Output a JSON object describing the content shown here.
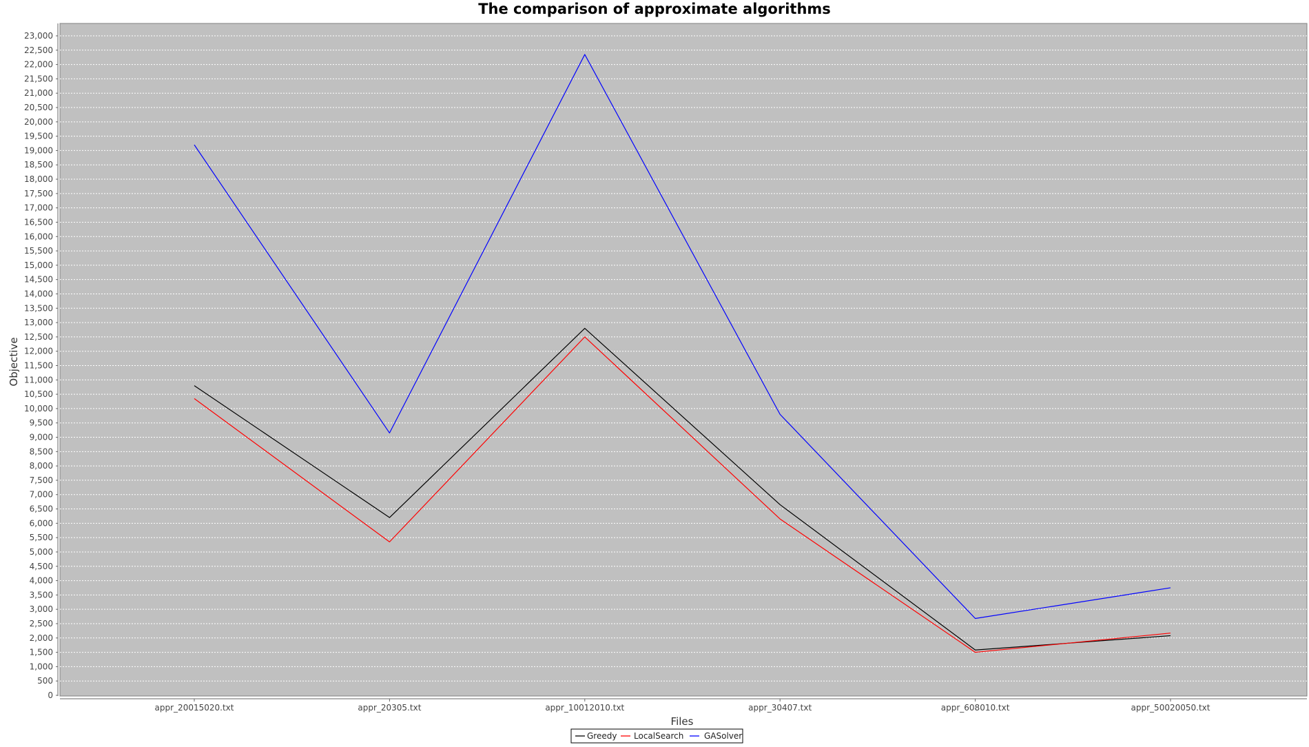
{
  "chart_data": {
    "type": "line",
    "title": "The comparison of approximate algorithms",
    "xlabel": "Files",
    "ylabel": "Objective",
    "categories": [
      "appr_20015020.txt",
      "appr_20305.txt",
      "appr_10012010.txt",
      "appr_30407.txt",
      "appr_608010.txt",
      "appr_50020050.txt"
    ],
    "series": [
      {
        "name": "Greedy",
        "color": "#000000",
        "values": [
          10800,
          6200,
          12800,
          6650,
          1580,
          2080
        ]
      },
      {
        "name": "LocalSearch",
        "color": "#ff0000",
        "values": [
          10350,
          5350,
          12500,
          6150,
          1500,
          2170
        ]
      },
      {
        "name": "GASolver",
        "color": "#0000ff",
        "values": [
          19200,
          9150,
          22350,
          9800,
          2680,
          3750
        ]
      }
    ],
    "ylim": [
      0,
      23000
    ],
    "ytick_step": 500,
    "ytick_labels": [
      "0",
      "500",
      "1,000",
      "1,500",
      "2,000",
      "2,500",
      "3,000",
      "3,500",
      "4,000",
      "4,500",
      "5,000",
      "5,500",
      "6,000",
      "6,500",
      "7,000",
      "7,500",
      "8,000",
      "8,500",
      "9,000",
      "9,500",
      "10,000",
      "10,500",
      "11,000",
      "11,500",
      "12,000",
      "12,500",
      "13,000",
      "13,500",
      "14,000",
      "14,500",
      "15,000",
      "15,500",
      "16,000",
      "16,500",
      "17,000",
      "17,500",
      "18,000",
      "18,500",
      "19,000",
      "19,500",
      "20,000",
      "20,500",
      "21,000",
      "21,500",
      "22,000",
      "22,500",
      "23,000"
    ],
    "grid": true,
    "plot_background": "#c0c0c0",
    "grid_color": "#ffffff",
    "legend_placement": "bottom-center"
  }
}
